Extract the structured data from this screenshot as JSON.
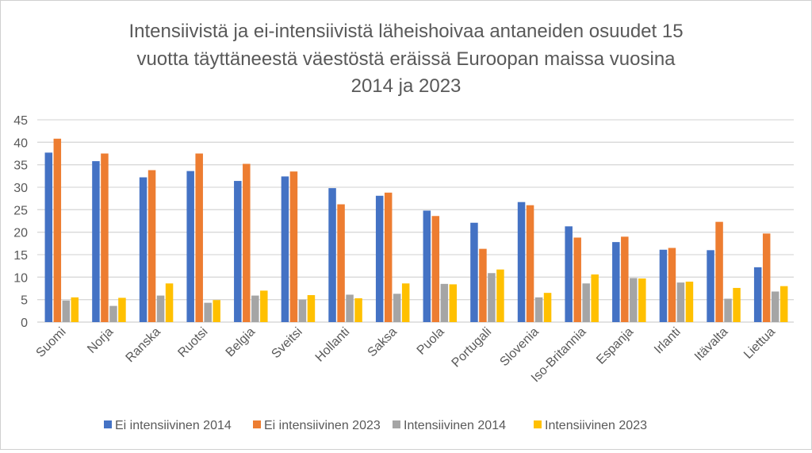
{
  "chart_data": {
    "type": "bar",
    "title": "Intensiivistä ja ei-intensiivistä läheishoivaa antaneiden osuudet 15 vuotta täyttäneestä väestöstä eräissä Euroopan maissa vuosina 2014 ja 2023",
    "title_lines": [
      "Intensiivistä ja ei-intensiivistä läheishoivaa antaneiden osuudet 15",
      "vuotta täyttäneestä väestöstä eräissä Euroopan maissa vuosina",
      "2014 ja 2023"
    ],
    "xlabel": "",
    "ylabel": "",
    "ylim": [
      0,
      45
    ],
    "yticks": [
      0,
      5,
      10,
      15,
      20,
      25,
      30,
      35,
      40,
      45
    ],
    "grid": true,
    "legend_position": "bottom",
    "categories": [
      "Suomi",
      "Norja",
      "Ranska",
      "Ruotsi",
      "Belgia",
      "Sveitsi",
      "Hollanti",
      "Saksa",
      "Puola",
      "Portugali",
      "Slovenia",
      "Iso-Britannia",
      "Espanja",
      "Irlanti",
      "Itävalta",
      "Liettua"
    ],
    "series": [
      {
        "name": "Ei intensiivinen 2014",
        "color": "#4472C4",
        "values": [
          37.7,
          35.8,
          32.2,
          33.6,
          31.4,
          32.4,
          29.8,
          28.1,
          24.8,
          22.1,
          26.7,
          21.3,
          17.8,
          16.1,
          16.0,
          12.2
        ]
      },
      {
        "name": "Ei intensiivinen 2023",
        "color": "#ED7D31",
        "values": [
          40.8,
          37.5,
          33.8,
          37.5,
          35.2,
          33.5,
          26.2,
          28.8,
          23.6,
          16.3,
          26.0,
          18.8,
          19.0,
          16.5,
          22.3,
          19.7
        ]
      },
      {
        "name": "Intensiivinen 2014",
        "color": "#A5A5A5",
        "values": [
          4.8,
          3.6,
          5.9,
          4.3,
          5.9,
          5.0,
          6.1,
          6.3,
          8.5,
          10.9,
          5.5,
          8.6,
          9.8,
          8.8,
          5.2,
          6.8
        ]
      },
      {
        "name": "Intensiivinen 2023",
        "color": "#FFC000",
        "values": [
          5.5,
          5.4,
          8.6,
          4.9,
          7.0,
          6.0,
          5.3,
          8.6,
          8.4,
          11.7,
          6.5,
          10.6,
          9.7,
          9.0,
          7.6,
          8.0
        ]
      }
    ]
  }
}
